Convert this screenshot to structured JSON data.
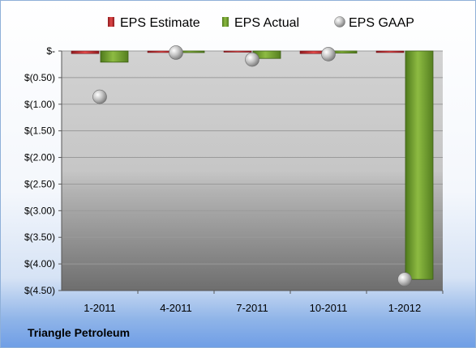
{
  "company": "Triangle Petroleum",
  "chart_data": {
    "type": "bar",
    "categories": [
      "1-2011",
      "4-2011",
      "7-2011",
      "10-2011",
      "1-2012"
    ],
    "series": [
      {
        "name": "EPS Estimate",
        "kind": "bar",
        "color": "#c0282d",
        "values": [
          -0.05,
          -0.03,
          -0.02,
          -0.05,
          -0.03
        ]
      },
      {
        "name": "EPS Actual",
        "kind": "bar",
        "color": "#77a033",
        "values": [
          -0.21,
          -0.03,
          -0.14,
          -0.04,
          -4.29
        ]
      },
      {
        "name": "EPS GAAP",
        "kind": "scatter",
        "color": "#a8a8a8",
        "values": [
          -0.86,
          -0.03,
          -0.16,
          -0.06,
          -4.29
        ]
      }
    ],
    "ylim": [
      -4.5,
      0
    ],
    "yticks": [
      0,
      -0.5,
      -1.0,
      -1.5,
      -2.0,
      -2.5,
      -3.0,
      -3.5,
      -4.0,
      -4.5
    ],
    "ytick_labels": [
      "$-",
      "$(0.50)",
      "$(1.00)",
      "$(1.50)",
      "$(2.00)",
      "$(2.50)",
      "$(3.00)",
      "$(3.50)",
      "$(4.00)",
      "$(4.50)"
    ],
    "legend_position": "top",
    "grid": true
  }
}
